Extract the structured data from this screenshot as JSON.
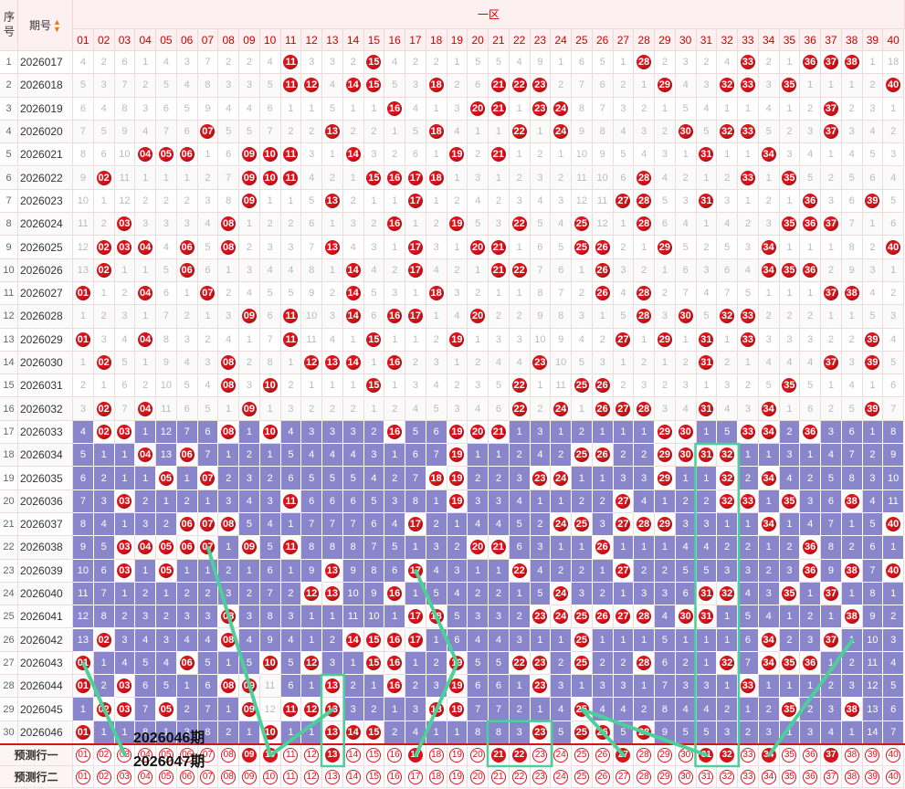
{
  "header": {
    "seq_label": "序号",
    "issue_label": "期号",
    "zone_label": "一区",
    "numbers": [
      "01",
      "02",
      "03",
      "04",
      "05",
      "06",
      "07",
      "08",
      "09",
      "10",
      "11",
      "12",
      "13",
      "14",
      "15",
      "16",
      "17",
      "18",
      "19",
      "20",
      "21",
      "22",
      "23",
      "24",
      "25",
      "26",
      "27",
      "28",
      "29",
      "30",
      "31",
      "32",
      "33",
      "34",
      "35",
      "36",
      "37",
      "38",
      "39",
      "40"
    ]
  },
  "rows": [
    {
      "seq": "1",
      "issue": "2026017",
      "cells": [
        "4",
        "2",
        "6",
        "1",
        "4",
        "3",
        "7",
        "2",
        "2",
        "4",
        "11",
        "3",
        "3",
        "2",
        "15",
        "4",
        "2",
        "2",
        "1",
        "5",
        "5",
        "4",
        "9",
        "1",
        "6",
        "5",
        "1",
        "28",
        "2",
        "3",
        "2",
        "4",
        "33",
        "2",
        "1",
        "36",
        "37",
        "38",
        "1",
        "18"
      ]
    },
    {
      "seq": "2",
      "issue": "2026018",
      "cells": [
        "5",
        "3",
        "7",
        "2",
        "5",
        "4",
        "8",
        "3",
        "3",
        "5",
        "11",
        "12",
        "4",
        "14",
        "15",
        "5",
        "3",
        "18",
        "2",
        "6",
        "21",
        "22",
        "23",
        "2",
        "7",
        "6",
        "2",
        "1",
        "29",
        "4",
        "3",
        "32",
        "33",
        "3",
        "35",
        "1",
        "1",
        "1",
        "2",
        "40"
      ]
    },
    {
      "seq": "3",
      "issue": "2026019",
      "cells": [
        "6",
        "4",
        "8",
        "3",
        "6",
        "5",
        "9",
        "4",
        "4",
        "6",
        "1",
        "1",
        "5",
        "1",
        "1",
        "16",
        "4",
        "1",
        "3",
        "20",
        "21",
        "1",
        "23",
        "24",
        "8",
        "7",
        "3",
        "2",
        "1",
        "5",
        "4",
        "1",
        "1",
        "4",
        "1",
        "2",
        "37",
        "2",
        "3",
        "1"
      ]
    },
    {
      "seq": "4",
      "issue": "2026020",
      "cells": [
        "7",
        "5",
        "9",
        "4",
        "7",
        "6",
        "07",
        "5",
        "5",
        "7",
        "2",
        "2",
        "13",
        "2",
        "2",
        "1",
        "5",
        "18",
        "4",
        "1",
        "1",
        "22",
        "1",
        "24",
        "9",
        "8",
        "4",
        "3",
        "2",
        "30",
        "5",
        "32",
        "33",
        "5",
        "2",
        "3",
        "37",
        "3",
        "4",
        "2"
      ]
    },
    {
      "seq": "5",
      "issue": "2026021",
      "cells": [
        "8",
        "6",
        "10",
        "04",
        "05",
        "06",
        "1",
        "6",
        "09",
        "10",
        "11",
        "3",
        "1",
        "14",
        "3",
        "2",
        "6",
        "1",
        "19",
        "2",
        "21",
        "1",
        "2",
        "1",
        "10",
        "9",
        "5",
        "4",
        "3",
        "1",
        "31",
        "1",
        "1",
        "34",
        "3",
        "4",
        "1",
        "4",
        "5",
        "3"
      ]
    },
    {
      "seq": "6",
      "issue": "2026022",
      "cells": [
        "9",
        "02",
        "11",
        "1",
        "1",
        "1",
        "2",
        "7",
        "09",
        "10",
        "11",
        "4",
        "2",
        "1",
        "15",
        "16",
        "17",
        "18",
        "1",
        "3",
        "1",
        "2",
        "3",
        "2",
        "11",
        "10",
        "6",
        "28",
        "4",
        "2",
        "1",
        "2",
        "33",
        "1",
        "35",
        "5",
        "2",
        "5",
        "6",
        "4"
      ]
    },
    {
      "seq": "7",
      "issue": "2026023",
      "cells": [
        "10",
        "1",
        "12",
        "2",
        "2",
        "2",
        "3",
        "8",
        "09",
        "1",
        "1",
        "5",
        "13",
        "2",
        "1",
        "1",
        "17",
        "1",
        "2",
        "4",
        "2",
        "3",
        "4",
        "3",
        "12",
        "11",
        "27",
        "28",
        "5",
        "3",
        "31",
        "3",
        "1",
        "2",
        "1",
        "36",
        "3",
        "6",
        "39",
        "5"
      ]
    },
    {
      "seq": "8",
      "issue": "2026024",
      "cells": [
        "11",
        "2",
        "03",
        "3",
        "3",
        "3",
        "4",
        "08",
        "1",
        "2",
        "2",
        "6",
        "1",
        "3",
        "2",
        "16",
        "1",
        "2",
        "19",
        "5",
        "3",
        "22",
        "5",
        "4",
        "25",
        "12",
        "1",
        "28",
        "6",
        "4",
        "1",
        "4",
        "2",
        "3",
        "35",
        "36",
        "37",
        "7",
        "1",
        "6"
      ]
    },
    {
      "seq": "9",
      "issue": "2026025",
      "cells": [
        "12",
        "02",
        "03",
        "04",
        "4",
        "06",
        "5",
        "08",
        "2",
        "3",
        "3",
        "7",
        "13",
        "4",
        "3",
        "1",
        "17",
        "3",
        "1",
        "20",
        "21",
        "1",
        "6",
        "5",
        "25",
        "26",
        "2",
        "1",
        "29",
        "5",
        "2",
        "5",
        "3",
        "34",
        "1",
        "1",
        "1",
        "8",
        "2",
        "40"
      ]
    },
    {
      "seq": "10",
      "issue": "2026026",
      "cells": [
        "13",
        "02",
        "1",
        "1",
        "5",
        "06",
        "6",
        "1",
        "3",
        "4",
        "4",
        "8",
        "1",
        "14",
        "4",
        "2",
        "17",
        "4",
        "2",
        "1",
        "21",
        "22",
        "7",
        "6",
        "1",
        "26",
        "3",
        "2",
        "1",
        "6",
        "3",
        "6",
        "4",
        "34",
        "35",
        "36",
        "2",
        "9",
        "3",
        "1"
      ]
    },
    {
      "seq": "11",
      "issue": "2026027",
      "cells": [
        "01",
        "1",
        "2",
        "04",
        "6",
        "1",
        "07",
        "2",
        "4",
        "5",
        "5",
        "9",
        "2",
        "14",
        "5",
        "3",
        "1",
        "18",
        "3",
        "2",
        "1",
        "1",
        "8",
        "7",
        "2",
        "26",
        "4",
        "28",
        "2",
        "7",
        "4",
        "7",
        "5",
        "1",
        "1",
        "1",
        "37",
        "38",
        "4",
        "2"
      ]
    },
    {
      "seq": "12",
      "issue": "2026028",
      "cells": [
        "1",
        "2",
        "3",
        "1",
        "7",
        "2",
        "1",
        "3",
        "09",
        "6",
        "11",
        "10",
        "3",
        "14",
        "6",
        "16",
        "17",
        "1",
        "4",
        "20",
        "2",
        "2",
        "9",
        "8",
        "3",
        "1",
        "5",
        "28",
        "3",
        "30",
        "5",
        "32",
        "33",
        "2",
        "2",
        "2",
        "1",
        "1",
        "5",
        "3"
      ]
    },
    {
      "seq": "13",
      "issue": "2026029",
      "cells": [
        "01",
        "3",
        "4",
        "04",
        "8",
        "3",
        "2",
        "4",
        "1",
        "7",
        "11",
        "11",
        "4",
        "1",
        "15",
        "1",
        "1",
        "2",
        "19",
        "1",
        "3",
        "3",
        "10",
        "9",
        "4",
        "2",
        "27",
        "1",
        "29",
        "1",
        "31",
        "1",
        "33",
        "3",
        "3",
        "3",
        "2",
        "2",
        "39",
        "4"
      ]
    },
    {
      "seq": "14",
      "issue": "2026030",
      "cells": [
        "1",
        "02",
        "5",
        "1",
        "9",
        "4",
        "3",
        "08",
        "2",
        "8",
        "1",
        "12",
        "13",
        "14",
        "1",
        "16",
        "2",
        "3",
        "1",
        "2",
        "4",
        "4",
        "23",
        "10",
        "5",
        "3",
        "1",
        "2",
        "1",
        "2",
        "31",
        "2",
        "1",
        "4",
        "4",
        "4",
        "37",
        "3",
        "39",
        "5"
      ]
    },
    {
      "seq": "15",
      "issue": "2026031",
      "cells": [
        "2",
        "1",
        "6",
        "2",
        "10",
        "5",
        "4",
        "08",
        "3",
        "10",
        "2",
        "1",
        "1",
        "1",
        "15",
        "1",
        "3",
        "4",
        "2",
        "3",
        "5",
        "22",
        "1",
        "11",
        "25",
        "26",
        "2",
        "3",
        "2",
        "3",
        "1",
        "3",
        "2",
        "5",
        "35",
        "5",
        "1",
        "4",
        "1",
        "6"
      ]
    },
    {
      "seq": "16",
      "issue": "2026032",
      "cells": [
        "3",
        "02",
        "7",
        "04",
        "11",
        "6",
        "5",
        "1",
        "09",
        "1",
        "3",
        "2",
        "2",
        "2",
        "1",
        "2",
        "4",
        "5",
        "3",
        "4",
        "6",
        "22",
        "2",
        "24",
        "1",
        "26",
        "27",
        "28",
        "3",
        "4",
        "31",
        "4",
        "3",
        "34",
        "1",
        "6",
        "2",
        "5",
        "39",
        "7"
      ]
    },
    {
      "seq": "17",
      "issue": "2026033",
      "cells": [
        "4",
        "02",
        "03",
        "1",
        "12",
        "7",
        "6",
        "08",
        "1",
        "10",
        "4",
        "3",
        "3",
        "3",
        "2",
        "16",
        "5",
        "6",
        "19",
        "20",
        "21",
        "1",
        "3",
        "1",
        "2",
        "1",
        "1",
        "1",
        "29",
        "30",
        "1",
        "5",
        "33",
        "34",
        "2",
        "36",
        "3",
        "6",
        "1",
        "8"
      ]
    },
    {
      "seq": "18",
      "issue": "2026034",
      "cells": [
        "5",
        "1",
        "1",
        "04",
        "13",
        "06",
        "7",
        "1",
        "2",
        "1",
        "5",
        "4",
        "4",
        "4",
        "3",
        "1",
        "6",
        "7",
        "19",
        "1",
        "1",
        "2",
        "4",
        "2",
        "25",
        "26",
        "2",
        "2",
        "29",
        "30",
        "31",
        "32",
        "1",
        "1",
        "3",
        "1",
        "4",
        "7",
        "2",
        "9"
      ]
    },
    {
      "seq": "19",
      "issue": "2026035",
      "cells": [
        "6",
        "2",
        "1",
        "1",
        "05",
        "1",
        "07",
        "2",
        "3",
        "2",
        "6",
        "5",
        "5",
        "5",
        "4",
        "2",
        "7",
        "18",
        "19",
        "2",
        "2",
        "3",
        "23",
        "24",
        "1",
        "1",
        "3",
        "3",
        "29",
        "1",
        "1",
        "32",
        "2",
        "34",
        "4",
        "2",
        "5",
        "8",
        "3",
        "10"
      ]
    },
    {
      "seq": "20",
      "issue": "2026036",
      "cells": [
        "7",
        "3",
        "03",
        "2",
        "1",
        "2",
        "1",
        "3",
        "4",
        "3",
        "11",
        "6",
        "6",
        "6",
        "5",
        "3",
        "8",
        "1",
        "19",
        "3",
        "3",
        "4",
        "1",
        "1",
        "2",
        "2",
        "27",
        "4",
        "1",
        "2",
        "2",
        "32",
        "33",
        "1",
        "35",
        "3",
        "6",
        "38",
        "4",
        "11"
      ]
    },
    {
      "seq": "21",
      "issue": "2026037",
      "cells": [
        "8",
        "4",
        "1",
        "3",
        "2",
        "06",
        "07",
        "08",
        "5",
        "4",
        "1",
        "7",
        "7",
        "7",
        "6",
        "4",
        "17",
        "2",
        "1",
        "4",
        "4",
        "5",
        "2",
        "24",
        "25",
        "3",
        "27",
        "28",
        "29",
        "3",
        "3",
        "1",
        "1",
        "34",
        "1",
        "4",
        "7",
        "1",
        "5",
        "40"
      ]
    },
    {
      "seq": "22",
      "issue": "2026038",
      "cells": [
        "9",
        "5",
        "03",
        "04",
        "05",
        "06",
        "07",
        "1",
        "09",
        "5",
        "11",
        "8",
        "8",
        "8",
        "7",
        "5",
        "1",
        "3",
        "2",
        "20",
        "21",
        "6",
        "3",
        "1",
        "1",
        "26",
        "1",
        "1",
        "1",
        "4",
        "4",
        "2",
        "2",
        "1",
        "2",
        "36",
        "8",
        "2",
        "6",
        "1"
      ]
    },
    {
      "seq": "23",
      "issue": "2026039",
      "cells": [
        "10",
        "6",
        "03",
        "1",
        "05",
        "1",
        "1",
        "2",
        "1",
        "6",
        "1",
        "9",
        "13",
        "9",
        "8",
        "6",
        "17",
        "4",
        "3",
        "1",
        "1",
        "22",
        "4",
        "2",
        "2",
        "1",
        "27",
        "2",
        "2",
        "5",
        "5",
        "3",
        "3",
        "2",
        "3",
        "36",
        "9",
        "38",
        "7",
        "40"
      ]
    },
    {
      "seq": "24",
      "issue": "2026040",
      "cells": [
        "11",
        "7",
        "1",
        "2",
        "1",
        "2",
        "2",
        "3",
        "2",
        "7",
        "2",
        "12",
        "13",
        "10",
        "9",
        "16",
        "1",
        "5",
        "4",
        "2",
        "2",
        "1",
        "5",
        "24",
        "3",
        "2",
        "1",
        "3",
        "3",
        "6",
        "31",
        "32",
        "4",
        "3",
        "35",
        "1",
        "37",
        "1",
        "8",
        "1"
      ]
    },
    {
      "seq": "25",
      "issue": "2026041",
      "cells": [
        "12",
        "8",
        "2",
        "3",
        "2",
        "3",
        "3",
        "08",
        "3",
        "8",
        "3",
        "1",
        "1",
        "11",
        "10",
        "1",
        "17",
        "18",
        "5",
        "3",
        "3",
        "2",
        "23",
        "24",
        "25",
        "26",
        "27",
        "28",
        "4",
        "30",
        "31",
        "1",
        "5",
        "4",
        "1",
        "2",
        "1",
        "38",
        "9",
        "2"
      ]
    },
    {
      "seq": "26",
      "issue": "2026042",
      "cells": [
        "13",
        "02",
        "3",
        "4",
        "3",
        "4",
        "4",
        "08",
        "4",
        "9",
        "4",
        "1",
        "2",
        "14",
        "15",
        "16",
        "17",
        "1",
        "6",
        "4",
        "4",
        "3",
        "1",
        "1",
        "25",
        "1",
        "1",
        "1",
        "5",
        "1",
        "1",
        "1",
        "6",
        "34",
        "2",
        "3",
        "37",
        "1",
        "10",
        "3"
      ]
    },
    {
      "seq": "27",
      "issue": "2026043",
      "cells": [
        "01",
        "1",
        "4",
        "5",
        "4",
        "06",
        "5",
        "1",
        "5",
        "10",
        "5",
        "12",
        "3",
        "1",
        "15",
        "16",
        "1",
        "2",
        "19",
        "5",
        "5",
        "22",
        "23",
        "2",
        "25",
        "2",
        "2",
        "28",
        "6",
        "2",
        "1",
        "32",
        "7",
        "34",
        "35",
        "36",
        "1",
        "2",
        "11",
        "4"
      ]
    },
    {
      "seq": "28",
      "issue": "2026044",
      "cells": [
        "01",
        "2",
        "03",
        "6",
        "5",
        "1",
        "6",
        "08",
        "09",
        "11",
        "6",
        "1",
        "13",
        "2",
        "1",
        "16",
        "2",
        "3",
        "19",
        "6",
        "6",
        "1",
        "23",
        "3",
        "1",
        "3",
        "3",
        "1",
        "7",
        "3",
        "3",
        "1",
        "33",
        "1",
        "1",
        "1",
        "2",
        "3",
        "12",
        "5"
      ]
    },
    {
      "seq": "29",
      "issue": "2026045",
      "cells": [
        "1",
        "02",
        "03",
        "7",
        "05",
        "2",
        "7",
        "1",
        "09",
        "12",
        "11",
        "12",
        "13",
        "3",
        "2",
        "1",
        "3",
        "18",
        "19",
        "7",
        "7",
        "2",
        "1",
        "4",
        "25",
        "4",
        "4",
        "2",
        "8",
        "4",
        "4",
        "2",
        "1",
        "2",
        "35",
        "2",
        "3",
        "38",
        "13",
        "6"
      ]
    },
    {
      "seq": "30",
      "issue": "2026046",
      "cells": [
        "01",
        "1",
        "1",
        "8",
        "1",
        "3",
        "8",
        "2",
        "1",
        "10",
        "1",
        "1",
        "13",
        "14",
        "15",
        "2",
        "4",
        "1",
        "1",
        "8",
        "8",
        "3",
        "23",
        "5",
        "25",
        "26",
        "5",
        "28",
        "9",
        "5",
        "5",
        "3",
        "2",
        "3",
        "1",
        "3",
        "4",
        "1",
        "14",
        "7"
      ]
    }
  ],
  "prediction": {
    "row1_label": "预测行一",
    "row2_label": "预测行二",
    "row1_selected": [
      "09",
      "10",
      "13",
      "17",
      "21",
      "22",
      "27",
      "31",
      "32",
      "34",
      "37"
    ],
    "annotation_1": "2026046期",
    "annotation_2": "2026047期"
  },
  "colors": {
    "ball": "#d8141b",
    "bar": "#8a86cc",
    "line": "#4dcf9a",
    "header_bg": "#fdf0f0"
  }
}
